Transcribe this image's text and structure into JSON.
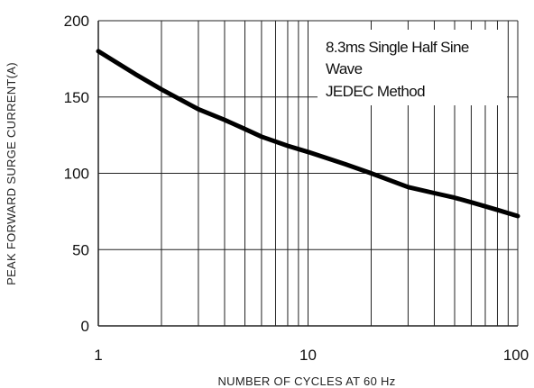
{
  "chart_data": {
    "type": "line",
    "xlabel": "NUMBER OF CYCLES AT 60 Hz",
    "ylabel": "PEAK FORWARD SURGE CURRENT(A)",
    "x_scale": "log",
    "xlim": [
      1,
      100
    ],
    "ylim": [
      0,
      200
    ],
    "x_ticks": [
      1,
      10,
      100
    ],
    "x_tick_labels": [
      "1",
      "10",
      "100"
    ],
    "y_ticks": [
      0,
      50,
      100,
      150,
      200
    ],
    "y_tick_labels": [
      "0",
      "50",
      "100",
      "150",
      "200"
    ],
    "grid": true,
    "annotations": [
      "8.3ms Single Half Sine",
      "Wave",
      "JEDEC Method"
    ],
    "series": [
      {
        "x": [
          1,
          1.5,
          2,
          3,
          4,
          5,
          6,
          8,
          10,
          15,
          20,
          30,
          40,
          50,
          60,
          80,
          100
        ],
        "y": [
          180,
          165,
          155,
          142,
          135,
          129,
          124,
          118,
          114,
          106,
          100,
          91,
          87,
          84,
          81,
          76,
          72
        ]
      }
    ]
  },
  "colors": {
    "background": "#ffffff",
    "grid": "#222222",
    "curve": "#000000"
  }
}
